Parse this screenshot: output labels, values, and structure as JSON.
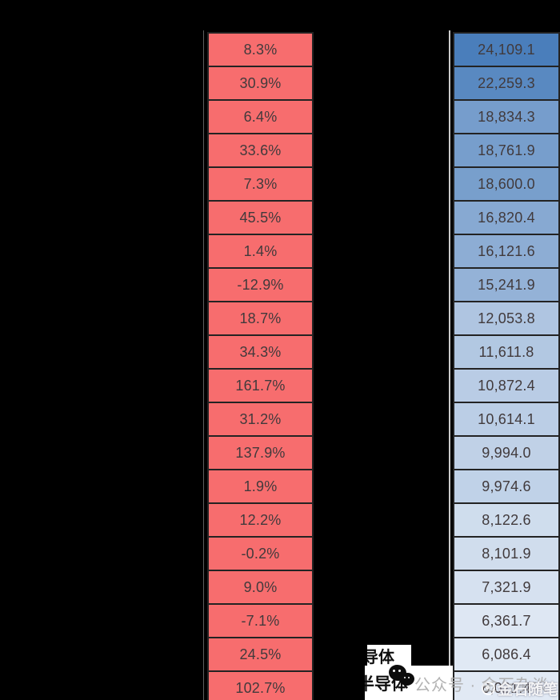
{
  "colors": {
    "background": "#000000",
    "cell_border": "#232323",
    "cell_text": "#413a3c",
    "percent_fill": "#f76d6e",
    "value_scale_max_color": "#4a7ebb",
    "value_scale_min_color": "#e1e9f4",
    "watermark_gray": "#acacac",
    "watermark_white": "#ffffff",
    "label_box_bg": "#ffffff"
  },
  "chart_data": {
    "type": "table",
    "columns": [
      {
        "id": "percent_change",
        "style": "solid-red-fill"
      },
      {
        "id": "value",
        "style": "blue-color-scale-high-to-low"
      }
    ],
    "rows": [
      {
        "percent_change": "8.3%",
        "value": "24,109.1"
      },
      {
        "percent_change": "30.9%",
        "value": "22,259.3"
      },
      {
        "percent_change": "6.4%",
        "value": "18,834.3"
      },
      {
        "percent_change": "33.6%",
        "value": "18,761.9"
      },
      {
        "percent_change": "7.3%",
        "value": "18,600.0"
      },
      {
        "percent_change": "45.5%",
        "value": "16,820.4"
      },
      {
        "percent_change": "1.4%",
        "value": "16,121.6"
      },
      {
        "percent_change": "-12.9%",
        "value": "15,241.9"
      },
      {
        "percent_change": "18.7%",
        "value": "12,053.8"
      },
      {
        "percent_change": "34.3%",
        "value": "11,611.8"
      },
      {
        "percent_change": "161.7%",
        "value": "10,872.4"
      },
      {
        "percent_change": "31.2%",
        "value": "10,614.1"
      },
      {
        "percent_change": "137.9%",
        "value": "9,994.0"
      },
      {
        "percent_change": "1.9%",
        "value": "9,974.6"
      },
      {
        "percent_change": "12.2%",
        "value": "8,122.6"
      },
      {
        "percent_change": "-0.2%",
        "value": "8,101.9"
      },
      {
        "percent_change": "9.0%",
        "value": "7,321.9"
      },
      {
        "percent_change": "-7.1%",
        "value": "6,361.7"
      },
      {
        "percent_change": "24.5%",
        "value": "6,086.4"
      },
      {
        "percent_change": "102.7%",
        "value": "6,021.4"
      }
    ]
  },
  "watermarks": {
    "clipped_label_top": "导体",
    "clipped_label_bottom": "半导体",
    "account_watermark": "公众号 · 金石杂谈",
    "brand_watermark": "金石随笔"
  }
}
